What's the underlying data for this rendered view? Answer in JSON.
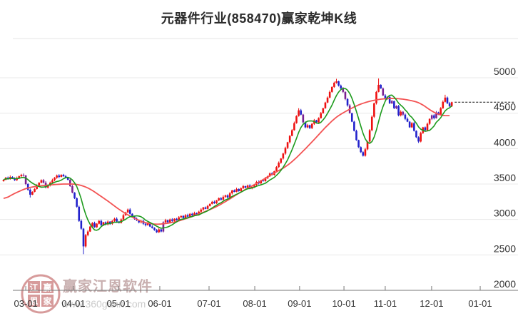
{
  "page": {
    "background": "#ffffff"
  },
  "chart": {
    "title": "元器件行业(858470)赢家乾坤K线",
    "watermark": {
      "brand": "赢家江恩软件",
      "url": "www.360gann.com",
      "seal_chars": [
        "江",
        "赢",
        "恩",
        "家"
      ]
    },
    "colors": {
      "up": "#ee1111",
      "down": "#2222cc",
      "special": "#7a2090",
      "ma_short": "#1d9b1d",
      "ma_long": "#f35353",
      "grid": "#e8e8e8",
      "top_border": "#e5e5e5",
      "axis": "#777777",
      "label": "#333333",
      "last_price_line": "#111111",
      "watermark_seal": "#cc8080",
      "watermark_text": "#c4a8a8",
      "watermark_url": "#cccccc"
    }
  },
  "chart_data": {
    "type": "candlestick",
    "title": "元器件行业(858470)赢家乾坤K线",
    "symbol": "858470",
    "industry": "元器件行业",
    "ylim": [
      2000,
      5000
    ],
    "y_ticks": [
      5000,
      4500,
      4000,
      3500,
      3000,
      2500,
      2000
    ],
    "x_ticks": [
      {
        "label": "03-01",
        "i": 10
      },
      {
        "label": "04-01",
        "i": 31.5
      },
      {
        "label": "05-01",
        "i": 51.8
      },
      {
        "label": "06-01",
        "i": 70.4
      },
      {
        "label": "07-01",
        "i": 92.6
      },
      {
        "label": "08-01",
        "i": 113.2
      },
      {
        "label": "09-01",
        "i": 133.4
      },
      {
        "label": "10-01",
        "i": 153.4
      },
      {
        "label": "11-01",
        "i": 172
      },
      {
        "label": "12-01",
        "i": 192.9
      },
      {
        "label": "01-01",
        "i": 214.8
      }
    ],
    "first_open": 3540,
    "closes": [
      3560,
      3590,
      3570,
      3600,
      3580,
      3555,
      3585,
      3610,
      3630,
      3620,
      3500,
      3420,
      3350,
      3390,
      3430,
      3480,
      3520,
      3555,
      3520,
      3450,
      3480,
      3520,
      3555,
      3590,
      3620,
      3600,
      3630,
      3610,
      3590,
      3560,
      3470,
      3380,
      3300,
      3180,
      2980,
      2870,
      2620,
      2780,
      2830,
      2900,
      2950,
      2890,
      2940,
      2980,
      2920,
      2960,
      2930,
      2970,
      2940,
      2980,
      3010,
      2970,
      2950,
      3000,
      3060,
      3100,
      3140,
      3080,
      3040,
      3010,
      2990,
      2960,
      2980,
      2940,
      2920,
      2950,
      2900,
      2880,
      2850,
      2820,
      2860,
      2830,
      2960,
      2990,
      2960,
      3000,
      2980,
      3010,
      2990,
      3030,
      3050,
      3020,
      3060,
      3040,
      3080,
      3060,
      3090,
      3070,
      3110,
      3140,
      3170,
      3150,
      3190,
      3220,
      3250,
      3230,
      3270,
      3300,
      3280,
      3320,
      3340,
      3310,
      3370,
      3410,
      3390,
      3430,
      3400,
      3440,
      3470,
      3450,
      3480,
      3440,
      3460,
      3490,
      3530,
      3510,
      3550,
      3540,
      3580,
      3610,
      3650,
      3630,
      3680,
      3740,
      3800,
      3860,
      3930,
      4010,
      4090,
      4180,
      4260,
      4360,
      4460,
      4540,
      4480,
      4370,
      4300,
      4330,
      4290,
      4350,
      4400,
      4370,
      4430,
      4500,
      4570,
      4650,
      4720,
      4800,
      4870,
      4930,
      4950,
      4890,
      4850,
      4800,
      4700,
      4610,
      4500,
      4380,
      4250,
      4120,
      4020,
      3950,
      3900,
      3990,
      4100,
      4260,
      4450,
      4640,
      4800,
      4900,
      4850,
      4750,
      4700,
      4730,
      4640,
      4670,
      4570,
      4600,
      4470,
      4520,
      4480,
      4420,
      4380,
      4300,
      4360,
      4250,
      4160,
      4100,
      4220,
      4300,
      4260,
      4350,
      4420,
      4470,
      4430,
      4510,
      4480,
      4570,
      4660,
      4720,
      4640,
      4600,
      4655
    ],
    "special_days": [
      9,
      10,
      18,
      19,
      30,
      31,
      72,
      135,
      153,
      154,
      156,
      171,
      173,
      175,
      177,
      180,
      193,
      195
    ],
    "wick_overrides": {
      "12": {
        "low": 3310
      },
      "36": {
        "low": 2510
      },
      "133": {
        "high": 4570
      },
      "150": {
        "high": 4985
      },
      "169": {
        "high": 4990
      },
      "187": {
        "low": 4080
      },
      "199": {
        "high": 4760
      }
    },
    "ma_short_window": 8,
    "ma_long_points": [
      [
        0,
        3280
      ],
      [
        5,
        3370
      ],
      [
        11,
        3450
      ],
      [
        18,
        3480
      ],
      [
        26,
        3500
      ],
      [
        33,
        3500
      ],
      [
        38,
        3450
      ],
      [
        41,
        3390
      ],
      [
        47,
        3260
      ],
      [
        53,
        3120
      ],
      [
        58,
        3030
      ],
      [
        63,
        2960
      ],
      [
        68,
        2930
      ],
      [
        73,
        2940
      ],
      [
        78,
        2970
      ],
      [
        84,
        3030
      ],
      [
        90,
        3100
      ],
      [
        96,
        3180
      ],
      [
        101,
        3270
      ],
      [
        107,
        3390
      ],
      [
        113,
        3490
      ],
      [
        119,
        3600
      ],
      [
        124,
        3690
      ],
      [
        128,
        3760
      ],
      [
        133,
        3900
      ],
      [
        137,
        4030
      ],
      [
        141,
        4160
      ],
      [
        145,
        4300
      ],
      [
        150,
        4450
      ],
      [
        155,
        4540
      ],
      [
        160,
        4620
      ],
      [
        165,
        4670
      ],
      [
        170,
        4700
      ],
      [
        175,
        4710
      ],
      [
        180,
        4700
      ],
      [
        185,
        4670
      ],
      [
        188,
        4640
      ],
      [
        191,
        4570
      ],
      [
        194,
        4510
      ],
      [
        197,
        4470
      ],
      [
        199,
        4460
      ],
      [
        201,
        4470
      ]
    ],
    "last_price": 4655,
    "grid": true,
    "legend": false
  }
}
